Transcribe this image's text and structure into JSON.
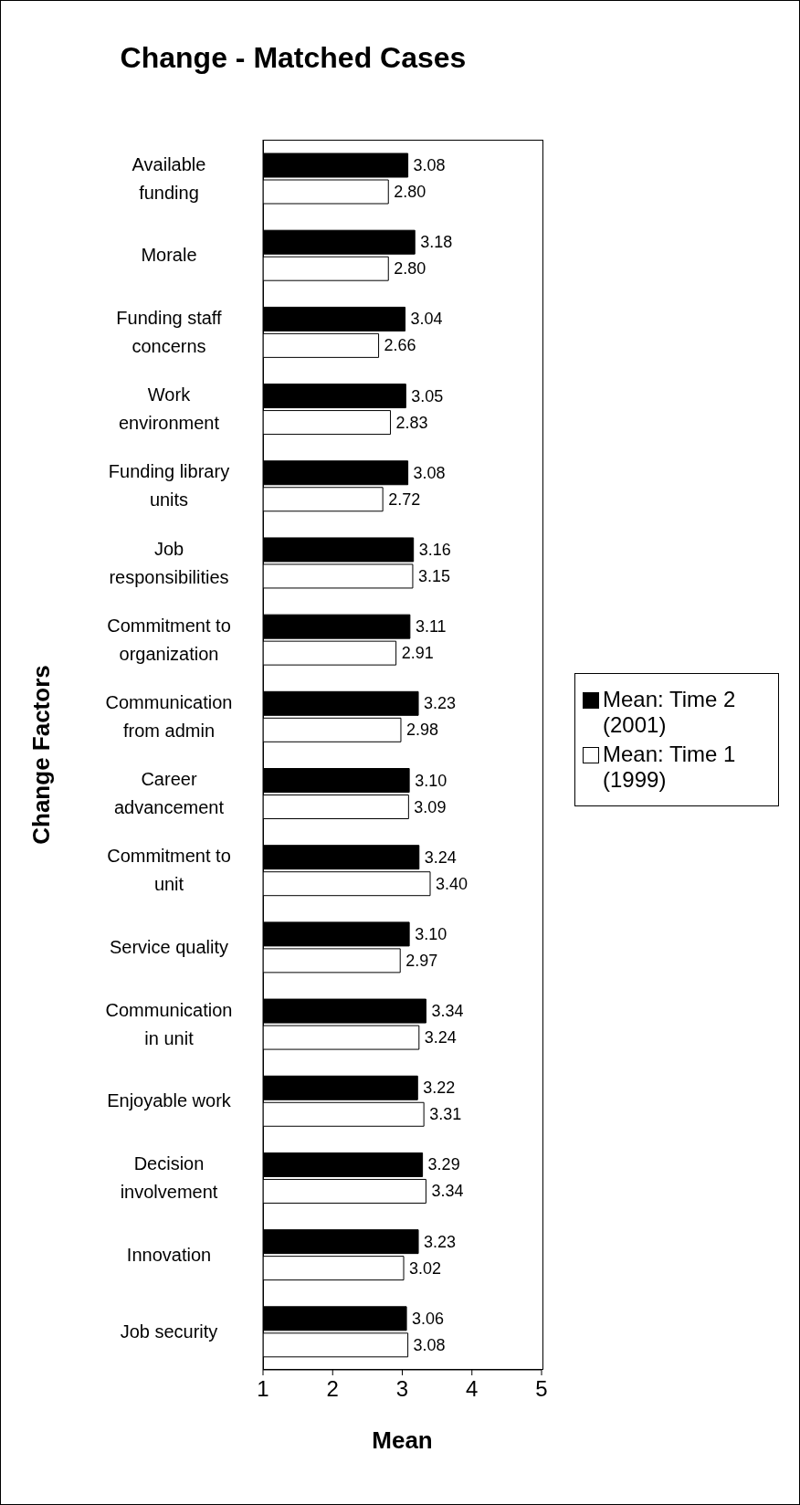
{
  "chart_data": {
    "type": "bar",
    "orientation": "horizontal",
    "title": "Change - Matched Cases",
    "xlabel": "Mean",
    "ylabel": "Change Factors",
    "categories": [
      "Available funding",
      "Morale",
      "Funding staff concerns",
      "Work environment",
      "Funding library units",
      "Job responsibilities",
      "Commitment to organization",
      "Communication from admin",
      "Career advancement",
      "Commitment to unit",
      "Service quality",
      "Communication in unit",
      "Enjoyable work",
      "Decision involvement",
      "Innovation",
      "Job security"
    ],
    "series": [
      {
        "name": "Mean: Time 2 (2001)",
        "color": "#000000",
        "values": [
          3.08,
          3.18,
          3.04,
          3.05,
          3.08,
          3.16,
          3.11,
          3.23,
          3.1,
          3.24,
          3.1,
          3.34,
          3.22,
          3.29,
          3.23,
          3.06
        ],
        "value_labels": [
          "3.08",
          "3.18",
          "3.04",
          "3.05",
          "3.08",
          "3.16",
          "3.11",
          "3.23",
          "3.10",
          "3.24",
          "3.10",
          "3.34",
          "3.22",
          "3.29",
          "3.23",
          "3.06"
        ]
      },
      {
        "name": "Mean: Time 1 (1999)",
        "color": "#ffffff",
        "values": [
          2.8,
          2.8,
          2.66,
          2.83,
          2.72,
          3.15,
          2.91,
          2.98,
          3.09,
          3.4,
          2.97,
          3.24,
          3.31,
          3.34,
          3.02,
          3.08
        ],
        "value_labels": [
          "2.80",
          "2.80",
          "2.66",
          "2.83",
          "2.72",
          "3.15",
          "2.91",
          "2.98",
          "3.09",
          "3.40",
          "2.97",
          "3.24",
          "3.31",
          "3.34",
          "3.02",
          "3.08"
        ]
      }
    ],
    "xlim": [
      1,
      5
    ],
    "xticks": [
      1,
      2,
      3,
      4,
      5
    ],
    "legend": "right"
  }
}
